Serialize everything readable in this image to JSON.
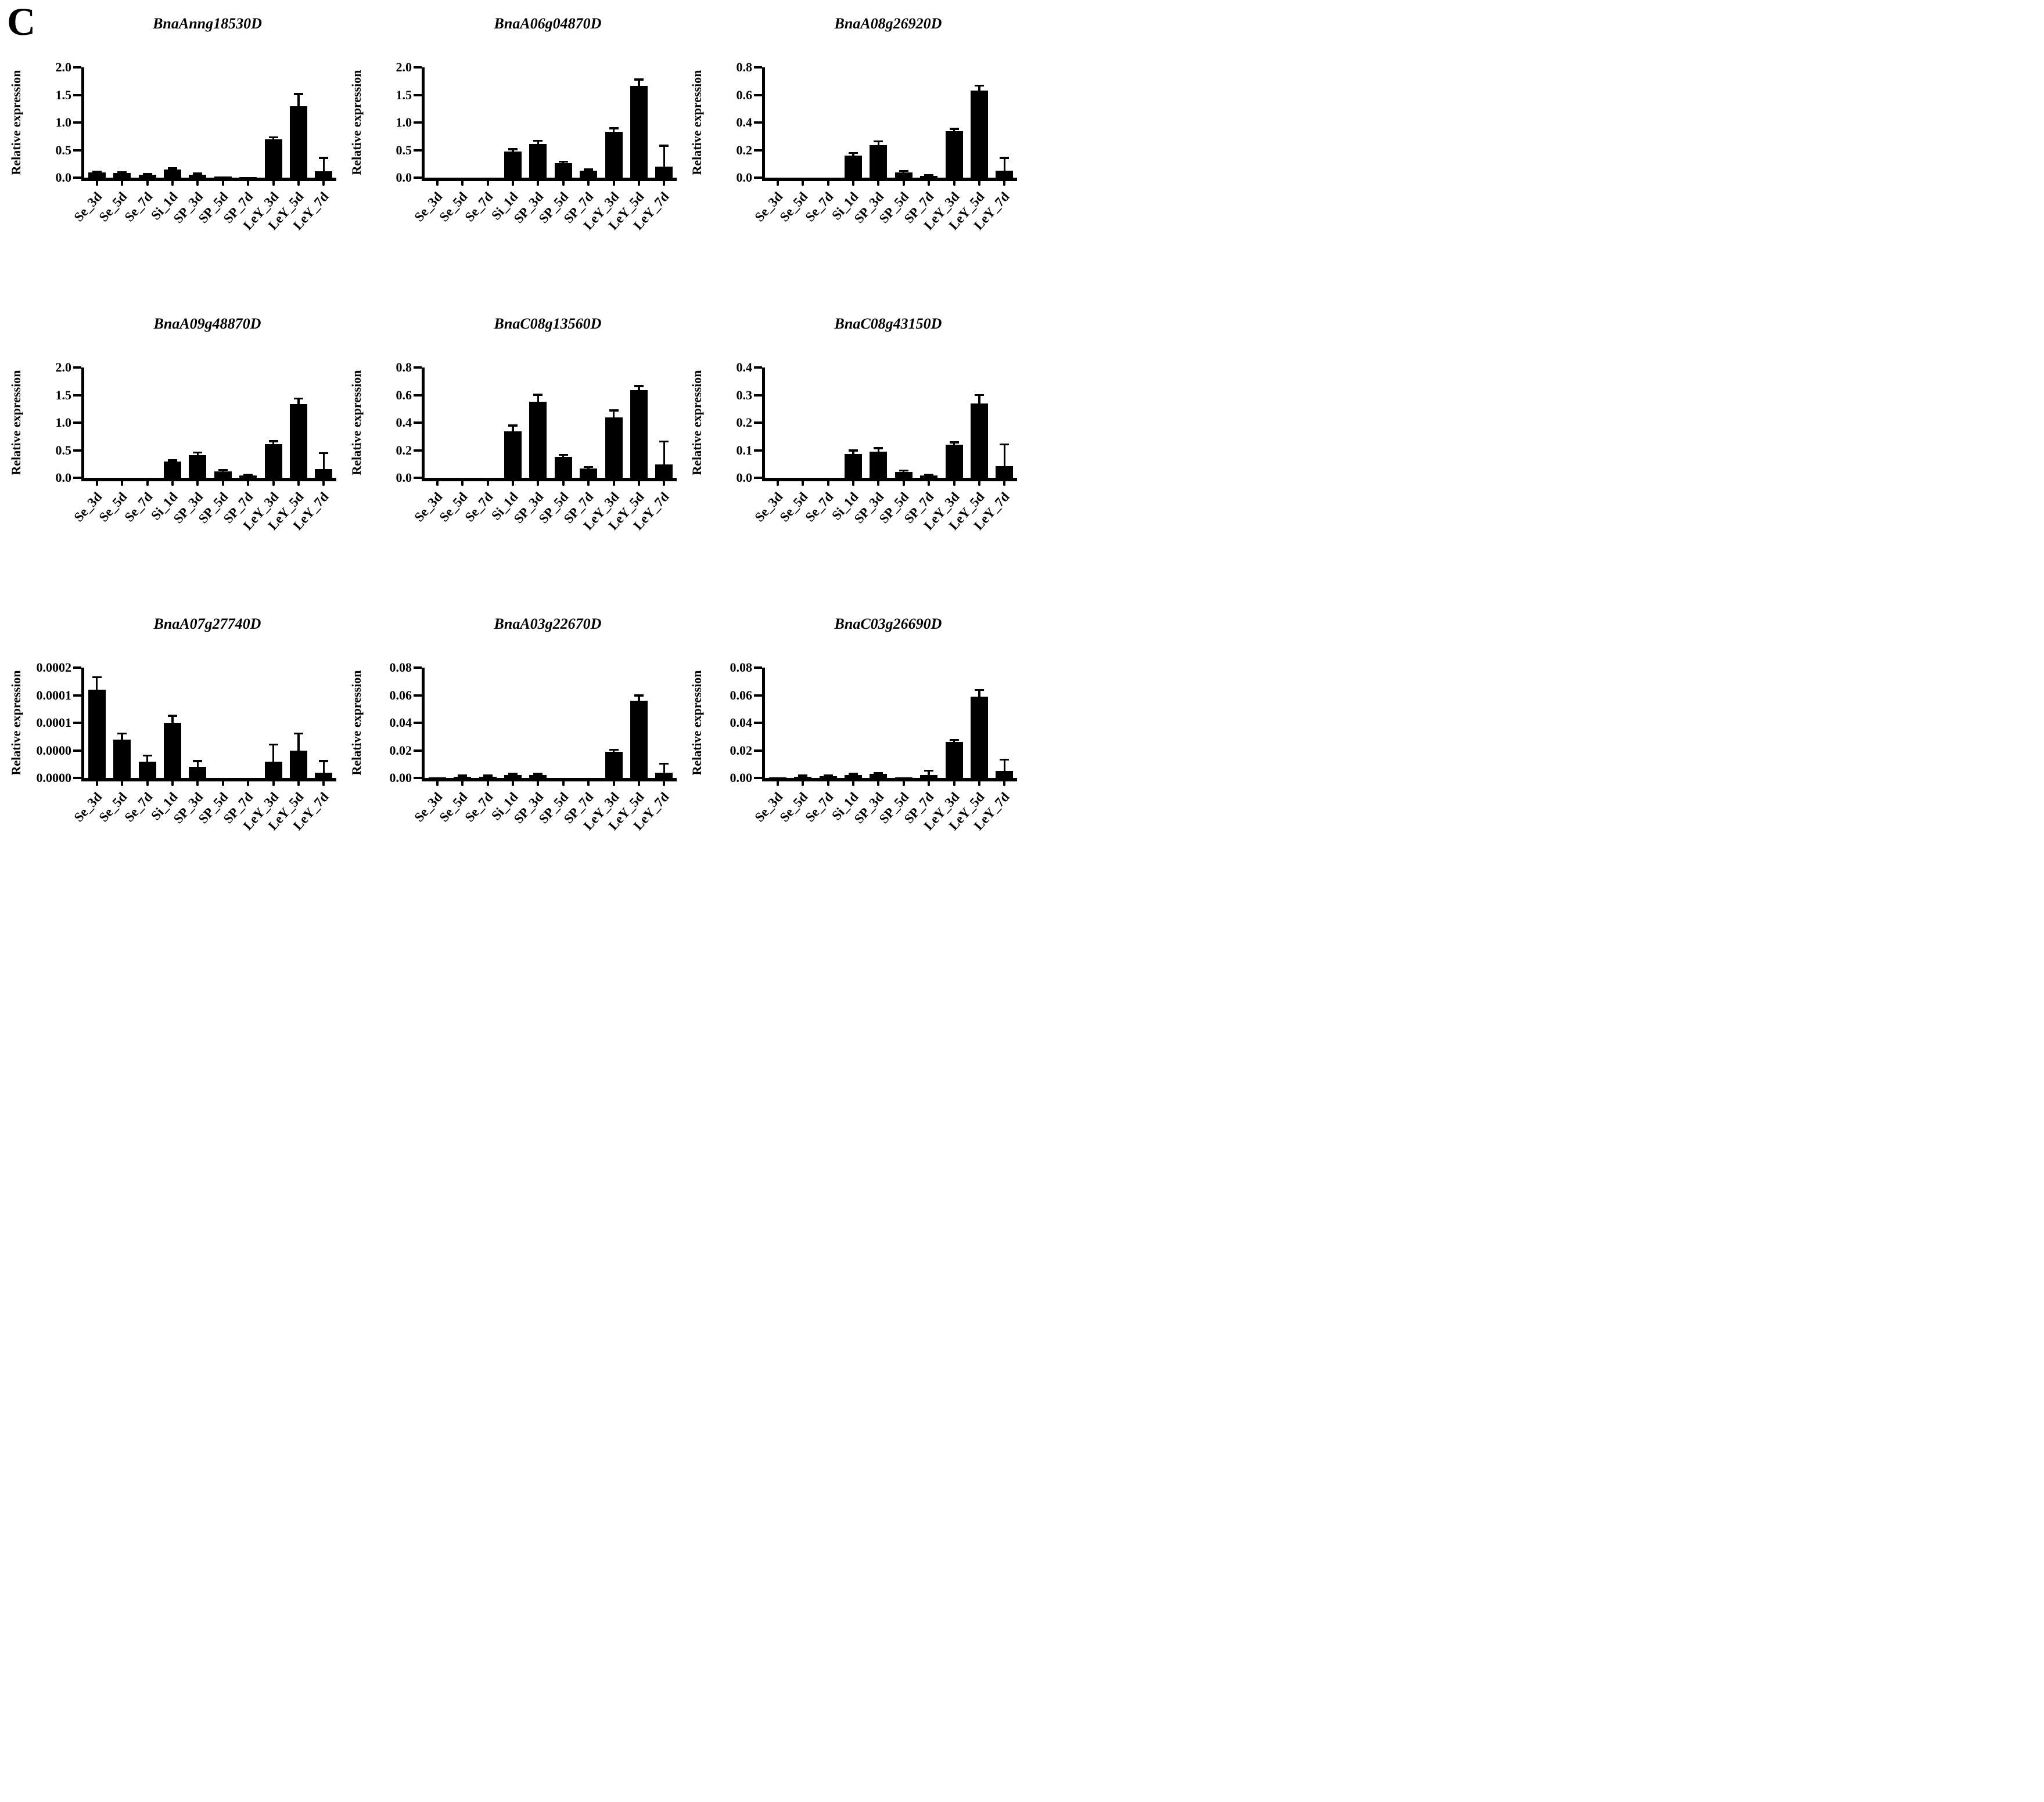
{
  "panel_label": "C",
  "colors": {
    "bars": "#000000",
    "background": "#ffffff",
    "text": "#000000"
  },
  "chart_data": [
    {
      "type": "bar",
      "title": "BnaAnng18530D",
      "ylabel": "Relative expression",
      "xlabel": "",
      "ylim": [
        0,
        2.0
      ],
      "ytick_labels": [
        "0.0",
        "0.5",
        "1.0",
        "1.5",
        "2.0"
      ],
      "grid": false,
      "legend": "none",
      "categories": [
        "Se_3d",
        "Se_5d",
        "Se_7d",
        "Si_1d",
        "SP_3d",
        "SP_5d",
        "SP_7d",
        "LeY_3d",
        "LeY_5d",
        "LeY_7d"
      ],
      "values": [
        0.09,
        0.08,
        0.05,
        0.15,
        0.05,
        0.02,
        0.012,
        0.7,
        1.3,
        0.12
      ],
      "errors": [
        0.015,
        0.01,
        0.008,
        0.012,
        0.015,
        0.005,
        0.004,
        0.025,
        0.21,
        0.23
      ]
    },
    {
      "type": "bar",
      "title": "BnaA06g04870D",
      "ylabel": "Relative expression",
      "xlabel": "",
      "ylim": [
        0,
        2.0
      ],
      "ytick_labels": [
        "0.0",
        "0.5",
        "1.0",
        "1.5",
        "2.0"
      ],
      "grid": false,
      "legend": "none",
      "categories": [
        "Se_3d",
        "Se_5d",
        "Se_7d",
        "Si_1d",
        "SP_3d",
        "SP_5d",
        "SP_7d",
        "LeY_3d",
        "LeY_5d",
        "LeY_7d"
      ],
      "values": [
        0,
        0,
        0,
        0.47,
        0.61,
        0.265,
        0.13,
        0.83,
        1.66,
        0.2
      ],
      "errors": [
        0,
        0,
        0,
        0.04,
        0.05,
        0.015,
        0.012,
        0.055,
        0.11,
        0.37
      ]
    },
    {
      "type": "bar",
      "title": "BnaA08g26920D",
      "ylabel": "Relative expression",
      "xlabel": "",
      "ylim": [
        0,
        0.8
      ],
      "ytick_labels": [
        "0.0",
        "0.2",
        "0.4",
        "0.6",
        "0.8"
      ],
      "grid": false,
      "legend": "none",
      "categories": [
        "Se_3d",
        "Se_5d",
        "Se_7d",
        "Si_1d",
        "SP_3d",
        "SP_5d",
        "SP_7d",
        "LeY_3d",
        "LeY_5d",
        "LeY_7d"
      ],
      "values": [
        0,
        0,
        0,
        0.16,
        0.235,
        0.04,
        0.013,
        0.335,
        0.63,
        0.05
      ],
      "errors": [
        0,
        0,
        0,
        0.015,
        0.025,
        0.006,
        0.003,
        0.016,
        0.035,
        0.09
      ]
    },
    {
      "type": "bar",
      "title": "BnaA09g48870D",
      "ylabel": "Relative expression",
      "xlabel": "",
      "ylim": [
        0,
        2.0
      ],
      "ytick_labels": [
        "0.0",
        "0.5",
        "1.0",
        "1.5",
        "2.0"
      ],
      "grid": false,
      "legend": "none",
      "categories": [
        "Se_3d",
        "Se_5d",
        "Se_7d",
        "Si_1d",
        "SP_3d",
        "SP_5d",
        "SP_7d",
        "LeY_3d",
        "LeY_5d",
        "LeY_7d"
      ],
      "values": [
        0,
        0,
        0,
        0.29,
        0.41,
        0.12,
        0.04,
        0.61,
        1.34,
        0.16
      ],
      "errors": [
        0,
        0,
        0,
        0.018,
        0.04,
        0.012,
        0.006,
        0.045,
        0.09,
        0.28
      ]
    },
    {
      "type": "bar",
      "title": "BnaC08g13560D",
      "ylabel": "Relative expression",
      "xlabel": "",
      "ylim": [
        0,
        0.8
      ],
      "ytick_labels": [
        "0.0",
        "0.2",
        "0.4",
        "0.6",
        "0.8"
      ],
      "grid": false,
      "legend": "none",
      "categories": [
        "Se_3d",
        "Se_5d",
        "Se_7d",
        "Si_1d",
        "SP_3d",
        "SP_5d",
        "SP_7d",
        "LeY_3d",
        "LeY_5d",
        "LeY_7d"
      ],
      "values": [
        0,
        0,
        0,
        0.335,
        0.55,
        0.15,
        0.068,
        0.44,
        0.635,
        0.095
      ],
      "errors": [
        0,
        0,
        0,
        0.04,
        0.05,
        0.013,
        0.006,
        0.045,
        0.028,
        0.165
      ]
    },
    {
      "type": "bar",
      "title": "BnaC08g43150D",
      "ylabel": "Relative expression",
      "xlabel": "",
      "ylim": [
        0,
        0.4
      ],
      "ytick_labels": [
        "0.0",
        "0.1",
        "0.2",
        "0.3",
        "0.4"
      ],
      "grid": false,
      "legend": "none",
      "categories": [
        "Se_3d",
        "Se_5d",
        "Se_7d",
        "Si_1d",
        "SP_3d",
        "SP_5d",
        "SP_7d",
        "LeY_3d",
        "LeY_5d",
        "LeY_7d"
      ],
      "values": [
        0,
        0,
        0,
        0.086,
        0.095,
        0.022,
        0.008,
        0.12,
        0.27,
        0.042
      ],
      "errors": [
        0,
        0,
        0,
        0.011,
        0.011,
        0.003,
        0.002,
        0.007,
        0.028,
        0.078
      ]
    },
    {
      "type": "bar",
      "title": "BnaA07g27740D",
      "ylabel": "Relative expression",
      "xlabel": "",
      "ylim": [
        0,
        0.0002
      ],
      "ytick_labels": [
        "0.0000",
        "0.0000",
        "0.0001",
        "0.0001",
        "0.0002"
      ],
      "grid": false,
      "legend": "none",
      "categories": [
        "Se_3d",
        "Se_5d",
        "Se_7d",
        "Si_1d",
        "SP_3d",
        "SP_5d",
        "SP_7d",
        "LeY_3d",
        "LeY_5d",
        "LeY_7d"
      ],
      "values": [
        0.00016,
        7e-05,
        3e-05,
        0.0001,
        2e-05,
        0,
        0,
        3e-05,
        5e-05,
        1e-05
      ],
      "errors": [
        2.2e-05,
        1e-05,
        1e-05,
        1.2e-05,
        1e-05,
        0,
        0,
        3e-05,
        3e-05,
        2e-05
      ]
    },
    {
      "type": "bar",
      "title": "BnaA03g22670D",
      "ylabel": "Relative expression",
      "xlabel": "",
      "ylim": [
        0,
        0.08
      ],
      "ytick_labels": [
        "0.00",
        "0.02",
        "0.04",
        "0.06",
        "0.08"
      ],
      "grid": false,
      "legend": "none",
      "categories": [
        "Se_3d",
        "Se_5d",
        "Se_7d",
        "Si_1d",
        "SP_3d",
        "SP_5d",
        "SP_7d",
        "LeY_3d",
        "LeY_5d",
        "LeY_7d"
      ],
      "values": [
        0.0005,
        0.001,
        0.001,
        0.0022,
        0.0022,
        0.0002,
        0.0002,
        0.019,
        0.056,
        0.004
      ],
      "errors": [
        0.0002,
        0.0003,
        0.0003,
        0.0004,
        0.0004,
        0,
        0,
        0.0012,
        0.0035,
        0.006
      ]
    },
    {
      "type": "bar",
      "title": "BnaC03g26690D",
      "ylabel": "Relative expression",
      "xlabel": "",
      "ylim": [
        0,
        0.08
      ],
      "ytick_labels": [
        "0.00",
        "0.02",
        "0.04",
        "0.06",
        "0.08"
      ],
      "grid": false,
      "legend": "none",
      "categories": [
        "Se_3d",
        "Se_5d",
        "Se_7d",
        "Si_1d",
        "SP_3d",
        "SP_5d",
        "SP_7d",
        "LeY_3d",
        "LeY_5d",
        "LeY_7d"
      ],
      "values": [
        0.0005,
        0.001,
        0.0012,
        0.0022,
        0.0028,
        0.0005,
        0.002,
        0.026,
        0.059,
        0.005
      ],
      "errors": [
        0.0002,
        0.0003,
        0.0003,
        0.0005,
        0.0005,
        0.0002,
        0.003,
        0.0013,
        0.0045,
        0.008
      ]
    }
  ]
}
